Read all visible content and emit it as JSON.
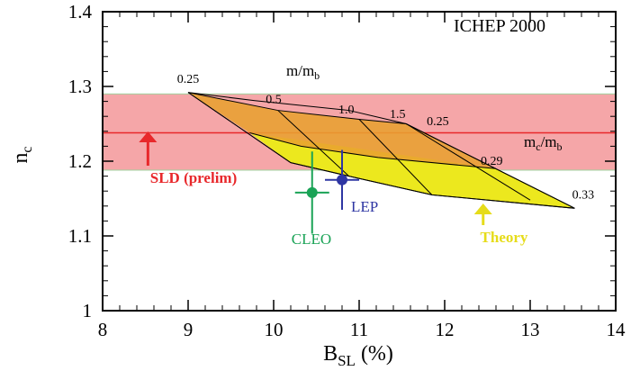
{
  "chart_data": {
    "type": "scatter",
    "title": "ICHEP 2000",
    "xlabel": {
      "main": "B",
      "sub": "SL",
      "unit": "(%)"
    },
    "ylabel": {
      "main": "n",
      "sub": "c"
    },
    "xlim": [
      8,
      14
    ],
    "ylim": [
      1.0,
      1.4
    ],
    "xticks": [
      "8",
      "9",
      "10",
      "11",
      "12",
      "13",
      "14"
    ],
    "yticks": [
      "1",
      "1.1",
      "1.2",
      "1.3",
      "1.4"
    ],
    "grid": false,
    "sld_band": {
      "label": "SLD (prelim)",
      "central": 1.238,
      "low": 1.188,
      "high": 1.29,
      "arrow_x": 8.53,
      "color": "#e8282b",
      "band_color": "#f5a6a8"
    },
    "measurements": [
      {
        "name": "CLEO",
        "x": 10.45,
        "y": 1.158,
        "x_err": 0.2,
        "y_err": 0.055,
        "color": "#1aa356"
      },
      {
        "name": "LEP",
        "x": 10.8,
        "y": 1.175,
        "x_err": 0.2,
        "y_err": 0.04,
        "color": "#2e36a3"
      }
    ],
    "theory": {
      "label": "Theory",
      "arrow_x": 12.45,
      "grid_lines": {
        "mb_ratio": [
          {
            "value": "0.25",
            "points": [
              [
                9.0,
                1.292
              ],
              [
                9.78,
                1.281
              ],
              [
                10.88,
                1.268
              ],
              [
                11.55,
                1.25
              ],
              [
                13.52,
                1.137
              ]
            ]
          },
          {
            "value": "0.29",
            "points": [
              [
                9.72,
                1.238
              ],
              [
                10.32,
                1.22
              ],
              [
                11.22,
                1.205
              ],
              [
                12.6,
                1.19
              ]
            ]
          },
          {
            "value": "0.33",
            "points": [
              [
                10.2,
                1.198
              ],
              [
                10.88,
                1.18
              ],
              [
                11.85,
                1.155
              ],
              [
                13.52,
                1.137
              ]
            ]
          }
        ],
        "mc_ratio": [
          {
            "value": "0.5",
            "points": [
              [
                9.0,
                1.292
              ],
              [
                10.2,
                1.198
              ]
            ]
          },
          {
            "value": "1.0",
            "points": [
              [
                10.05,
                1.268
              ],
              [
                10.88,
                1.18
              ]
            ]
          },
          {
            "value": "1.5",
            "points": [
              [
                11.0,
                1.256
              ],
              [
                11.85,
                1.155
              ]
            ]
          },
          {
            "value": "",
            "points": [
              [
                11.55,
                1.25
              ],
              [
                13.0,
                1.148
              ]
            ]
          }
        ]
      },
      "fill_upper": "#e8a030",
      "fill_lower": "#ece81e"
    },
    "annotations": {
      "m_mb_label": {
        "main": "m/m",
        "sub": "b"
      },
      "mc_mb_label": {
        "main": "m",
        "sub1": "c",
        "mid": "/m",
        "sub2": "b"
      },
      "value_labels": [
        {
          "text": "0.25",
          "x": 9.0,
          "y": 1.305
        },
        {
          "text": "0.5",
          "x": 10.0,
          "y": 1.278
        },
        {
          "text": "1.0",
          "x": 10.85,
          "y": 1.264
        },
        {
          "text": "1.5",
          "x": 11.45,
          "y": 1.258
        },
        {
          "text": "0.25",
          "x": 11.92,
          "y": 1.248
        },
        {
          "text": "0.29",
          "x": 12.55,
          "y": 1.195
        },
        {
          "text": "0.33",
          "x": 13.62,
          "y": 1.15
        }
      ]
    }
  }
}
